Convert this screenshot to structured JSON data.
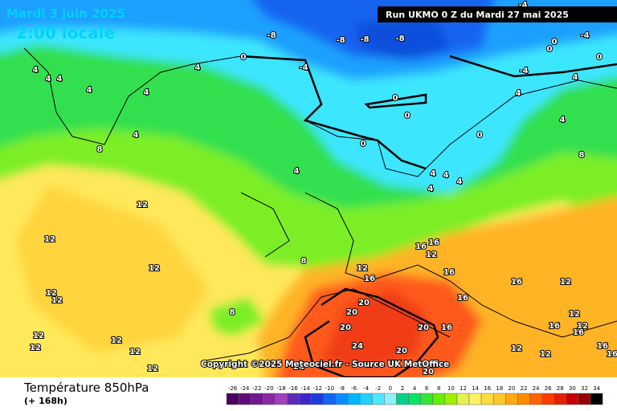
{
  "header": {
    "date": "Mardi 3 juin 2025",
    "time": "2:00 locale",
    "run": "Run UKMO 0 Z du Mardi 27 mai 2025"
  },
  "copyright": "Copyright ©2025 Meteociel.fr - Source UK MetOffice",
  "footer": {
    "title": "Température 850hPa",
    "lead": "(+ 168h)"
  },
  "legend": {
    "values": [
      -26,
      -24,
      -22,
      -20,
      -18,
      -16,
      -14,
      -12,
      -10,
      -8,
      -6,
      -4,
      -2,
      0,
      2,
      4,
      6,
      8,
      10,
      12,
      14,
      16,
      18,
      20,
      22,
      24,
      26,
      28,
      30,
      32,
      34
    ],
    "colors": [
      "#4b0062",
      "#5e0a78",
      "#72168e",
      "#8a28a4",
      "#a040bc",
      "#5a2ab4",
      "#3c28c8",
      "#1e3cdc",
      "#1464f0",
      "#0a8cff",
      "#00b4ff",
      "#1ed2ff",
      "#50e6ff",
      "#8cf0ff",
      "#00d28c",
      "#00e664",
      "#32e632",
      "#64f000",
      "#a0f000",
      "#e6f050",
      "#fff064",
      "#ffdc3c",
      "#ffc828",
      "#ffaa14",
      "#ff8c00",
      "#ff6400",
      "#ff3c00",
      "#e61e00",
      "#c80000",
      "#960000",
      "#000000"
    ]
  },
  "contour_labels": [
    -8,
    -8,
    -8,
    -8,
    -4,
    -4,
    -4,
    0,
    0,
    0,
    0,
    0,
    0,
    0,
    0,
    -4,
    4,
    4,
    4,
    4,
    4,
    4,
    4,
    4,
    4,
    4,
    8,
    8,
    4,
    4,
    4,
    4,
    4,
    8,
    8,
    12,
    12,
    12,
    12,
    12,
    12,
    12,
    12,
    12,
    12,
    12,
    16,
    16,
    16,
    12,
    16,
    16,
    16,
    12,
    16,
    12,
    12,
    16,
    12,
    12,
    16,
    16,
    20,
    20,
    20,
    20,
    16,
    24,
    20,
    20,
    24
  ]
}
